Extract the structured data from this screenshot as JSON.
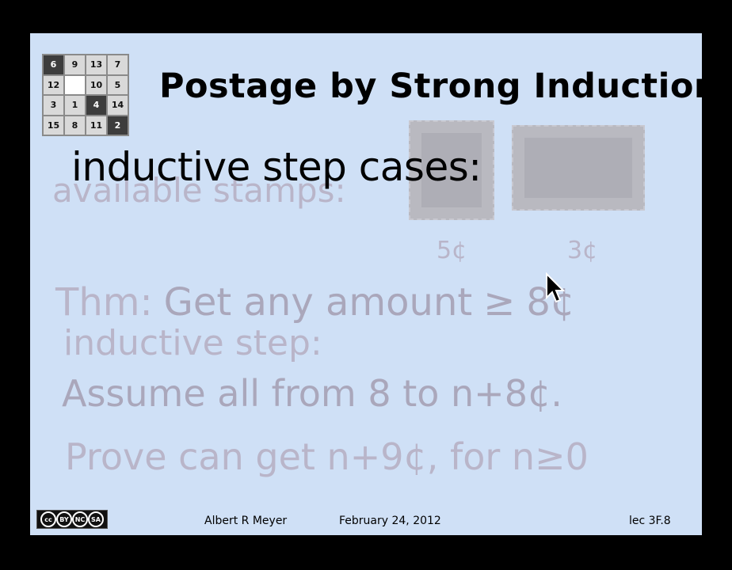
{
  "slide": {
    "title": "Postage by Strong Induction",
    "heading": "inductive step cases:",
    "available_stamps_label": "available stamps:",
    "stamp_values": [
      "5¢",
      "3¢"
    ],
    "theorem_label": "Thm:",
    "theorem_text": "Get any amount",
    "theorem_geq": "≥",
    "theorem_amount": "8¢",
    "inductive_step_label": "inductive step:",
    "assume_text": "Assume all from 8 to n+8¢.",
    "prove_text_a": "Prove can get  n+9¢, for n",
    "prove_geq": "≥",
    "prove_text_b": "0"
  },
  "puzzle_tiles": [
    "6",
    "9",
    "13",
    "7",
    "12",
    "",
    "10",
    "5",
    "3",
    "1",
    "4",
    "14",
    "15",
    "8",
    "11",
    "2"
  ],
  "footer": {
    "author": "Albert R Meyer",
    "date": "February 24, 2012",
    "lecture": "lec 3F.8"
  },
  "license_badge": {
    "icons": [
      "cc-icon",
      "by-icon",
      "nc-icon",
      "sa-icon"
    ],
    "labels": [
      "cc",
      "BY",
      "NC",
      "SA"
    ]
  },
  "colors": {
    "slide_background": "#cfe0f6",
    "faded_text": "#b9b5c9",
    "frame": "#000000"
  }
}
